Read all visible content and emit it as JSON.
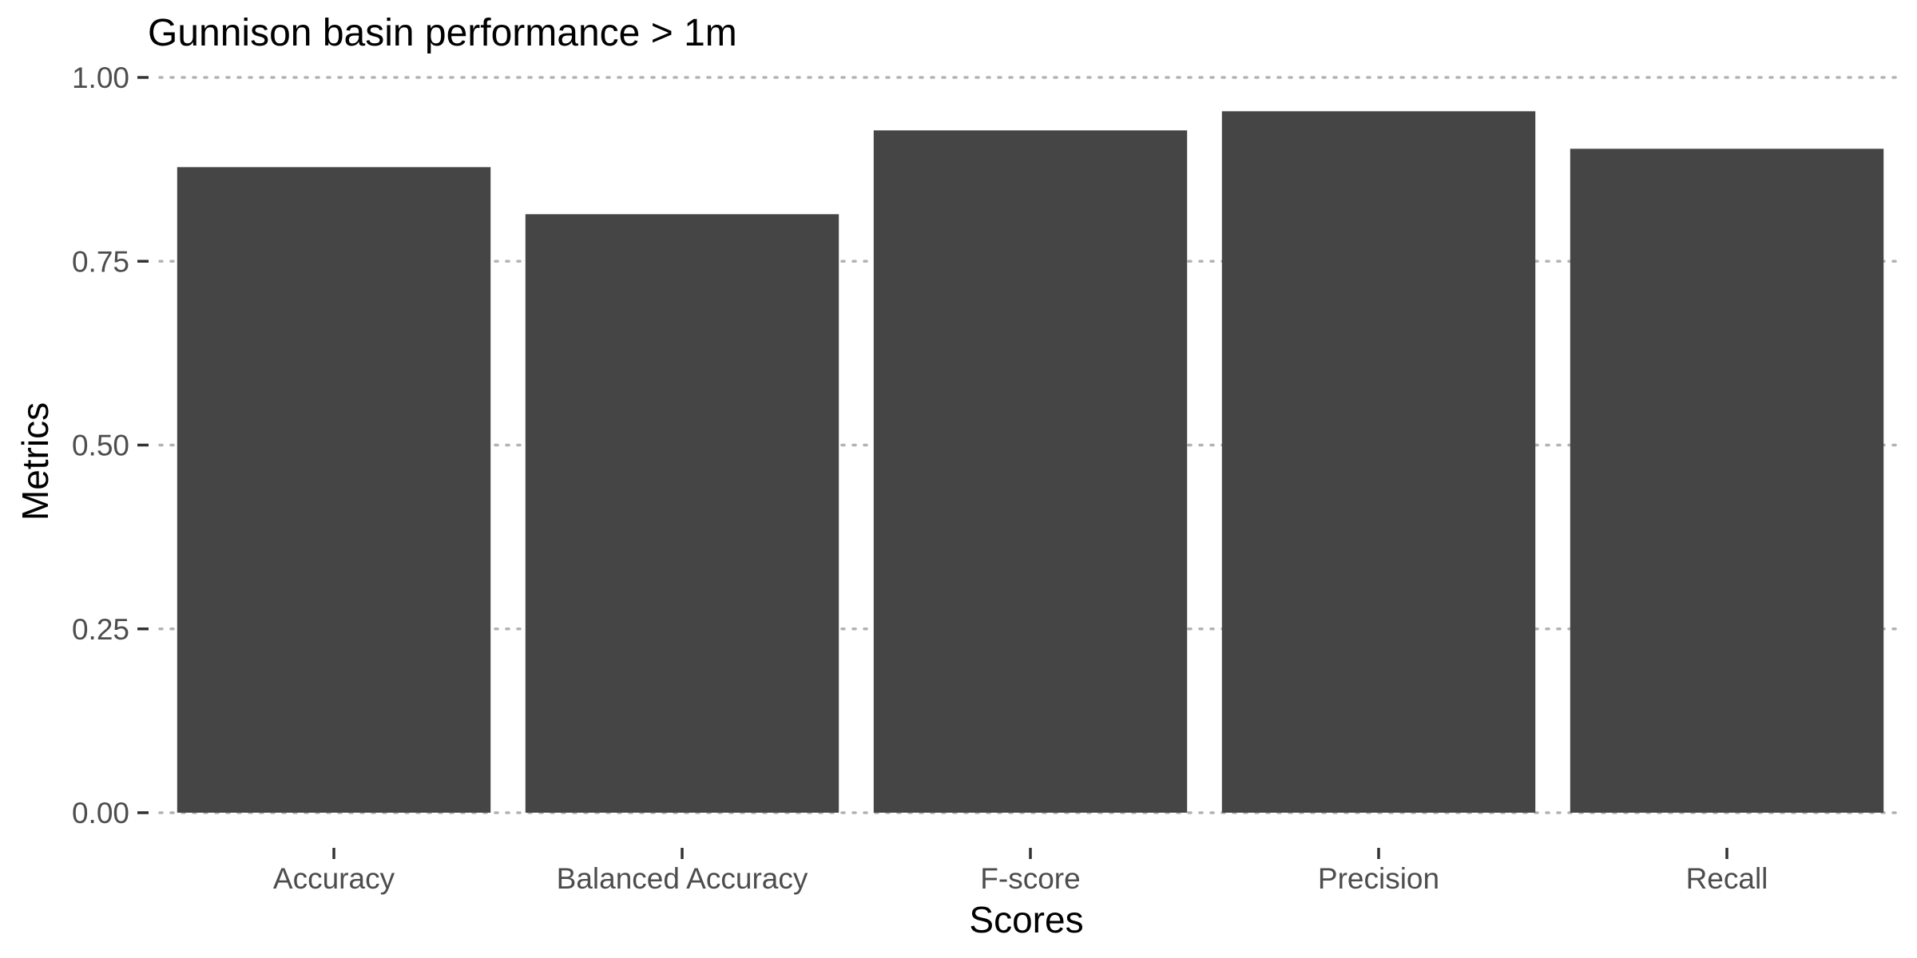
{
  "chart_data": {
    "type": "bar",
    "title": "Gunnison basin performance > 1m",
    "xlabel": "Scores",
    "ylabel": "Metrics",
    "categories": [
      "Accuracy",
      "Balanced Accuracy",
      "F-score",
      "Precision",
      "Recall"
    ],
    "values": [
      0.878,
      0.814,
      0.928,
      0.954,
      0.903
    ],
    "ylim": [
      0,
      1
    ],
    "yticks": [
      0,
      0.25,
      0.5,
      0.75,
      1
    ],
    "ytick_labels": [
      "0.00",
      "0.25",
      "0.50",
      "0.75",
      "1.00"
    ],
    "grid": "horizontal, dotted",
    "legend": "none",
    "bar_color": "#454545",
    "grid_color": "#b3b3b3"
  }
}
